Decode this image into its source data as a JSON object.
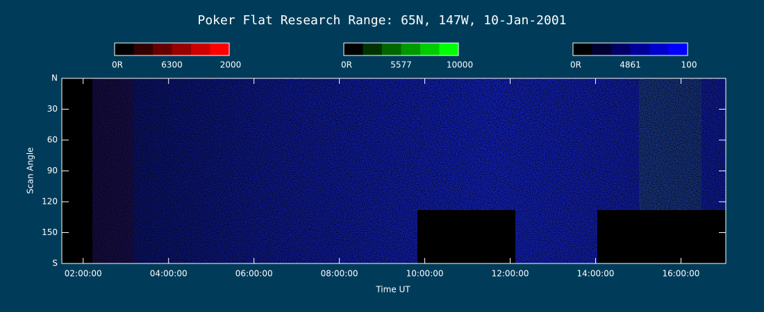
{
  "chart_data": {
    "type": "keogram",
    "title": "Poker Flat Research Range: 65N, 147W, 10-Jan-2001",
    "x_label": "Time UT",
    "y_label": "Scan Angle",
    "xlim": [
      1.5,
      17.05
    ],
    "xticks": [
      {
        "value": 2,
        "label": "02:00:00"
      },
      {
        "value": 4,
        "label": "04:00:00"
      },
      {
        "value": 6,
        "label": "06:00:00"
      },
      {
        "value": 8,
        "label": "08:00:00"
      },
      {
        "value": 10,
        "label": "10:00:00"
      },
      {
        "value": 12,
        "label": "12:00:00"
      },
      {
        "value": 14,
        "label": "14:00:00"
      },
      {
        "value": 16,
        "label": "16:00:00"
      }
    ],
    "ylim": [
      0,
      180
    ],
    "yticks": [
      {
        "value": 0,
        "label": "N"
      },
      30,
      60,
      90,
      120,
      150,
      {
        "value": 180,
        "label": "S"
      }
    ],
    "colorbars": [
      {
        "min_label": "0R",
        "name": "6300",
        "max_label": "2000",
        "color": "#ff0000"
      },
      {
        "min_label": "0R",
        "name": "5577",
        "max_label": "10000",
        "color": "#00ff00"
      },
      {
        "min_label": "0R",
        "name": "4861",
        "max_label": "100",
        "color": "#0000ff"
      }
    ]
  }
}
